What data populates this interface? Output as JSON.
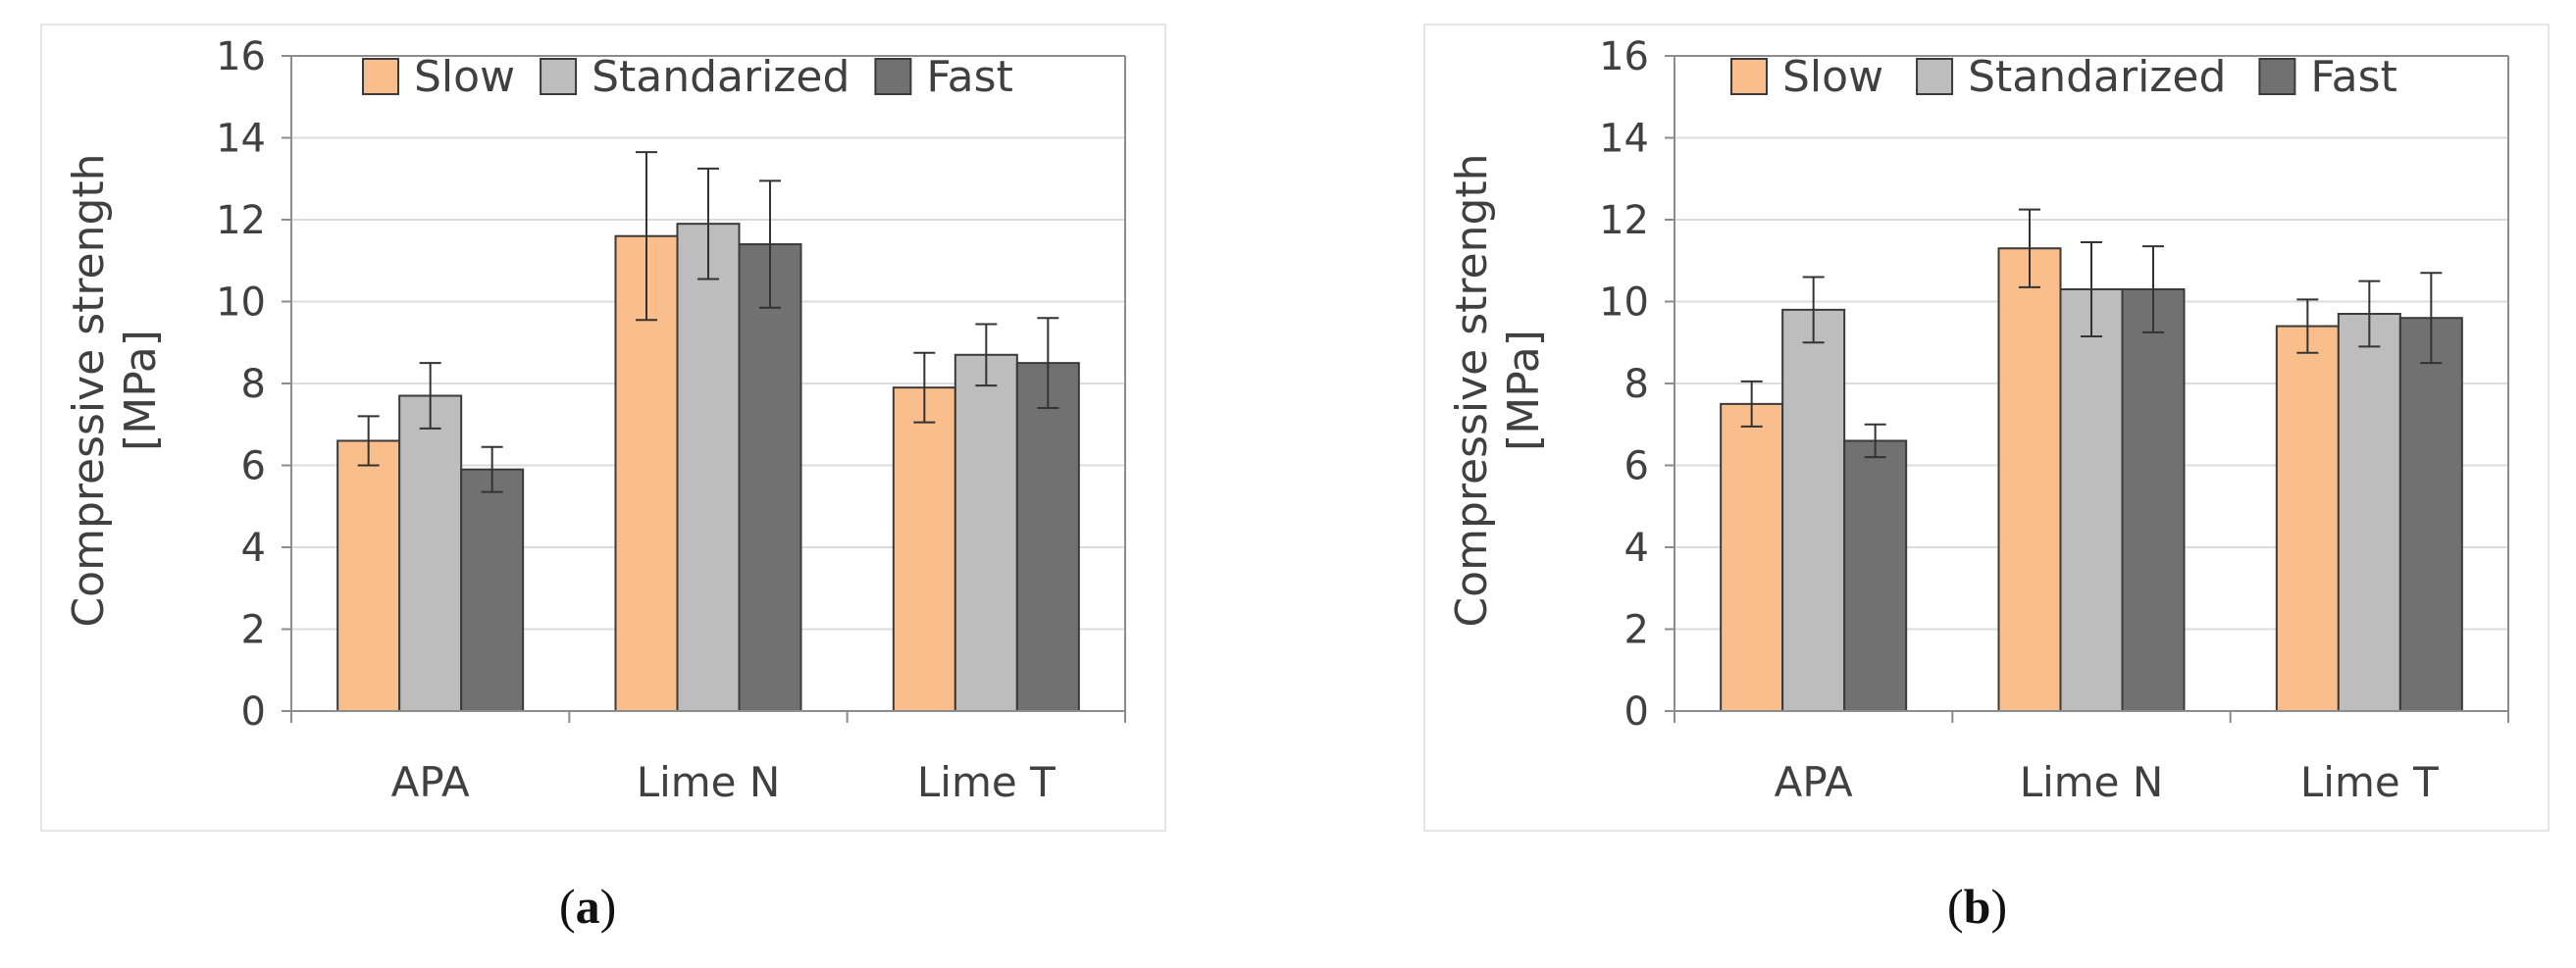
{
  "colors": {
    "slow": "#F9BE8C",
    "standardized": "#BDBDBD",
    "fast": "#717171",
    "frame": "#E6E6E6",
    "grid": "#DCDCDC",
    "axis": "#8C8C8C",
    "text": "#404040"
  },
  "chart_data": [
    {
      "type": "bar",
      "panel_label": "a",
      "categories": [
        "APA",
        "Lime N",
        "Lime T"
      ],
      "ylabel_lines": [
        "Compressive strength",
        "[MPa]"
      ],
      "ylim": [
        0,
        16
      ],
      "yticks": [
        "0",
        "2",
        "4",
        "6",
        "8",
        "10",
        "12",
        "14",
        "16"
      ],
      "grid": true,
      "legend_position": "top",
      "series": [
        {
          "name": "Slow",
          "values": [
            6.6,
            11.6,
            7.9
          ],
          "errors": [
            0.6,
            2.05,
            0.85
          ]
        },
        {
          "name": "Standarized",
          "values": [
            7.7,
            11.9,
            8.7
          ],
          "errors": [
            0.8,
            1.35,
            0.75
          ]
        },
        {
          "name": "Fast",
          "values": [
            5.9,
            11.4,
            8.5
          ],
          "errors": [
            0.55,
            1.55,
            1.1
          ]
        }
      ]
    },
    {
      "type": "bar",
      "panel_label": "b",
      "categories": [
        "APA",
        "Lime N",
        "Lime T"
      ],
      "ylabel_lines": [
        "Compressive strength",
        "[MPa]"
      ],
      "ylim": [
        0,
        16
      ],
      "yticks": [
        "0",
        "2",
        "4",
        "6",
        "8",
        "10",
        "12",
        "14",
        "16"
      ],
      "grid": true,
      "legend_position": "top",
      "series": [
        {
          "name": "Slow",
          "values": [
            7.5,
            11.3,
            9.4
          ],
          "errors": [
            0.55,
            0.95,
            0.65
          ]
        },
        {
          "name": "Standarized",
          "values": [
            9.8,
            10.3,
            9.7
          ],
          "errors": [
            0.8,
            1.15,
            0.8
          ]
        },
        {
          "name": "Fast",
          "values": [
            6.6,
            10.3,
            9.6
          ],
          "errors": [
            0.4,
            1.05,
            1.1
          ]
        }
      ]
    }
  ]
}
